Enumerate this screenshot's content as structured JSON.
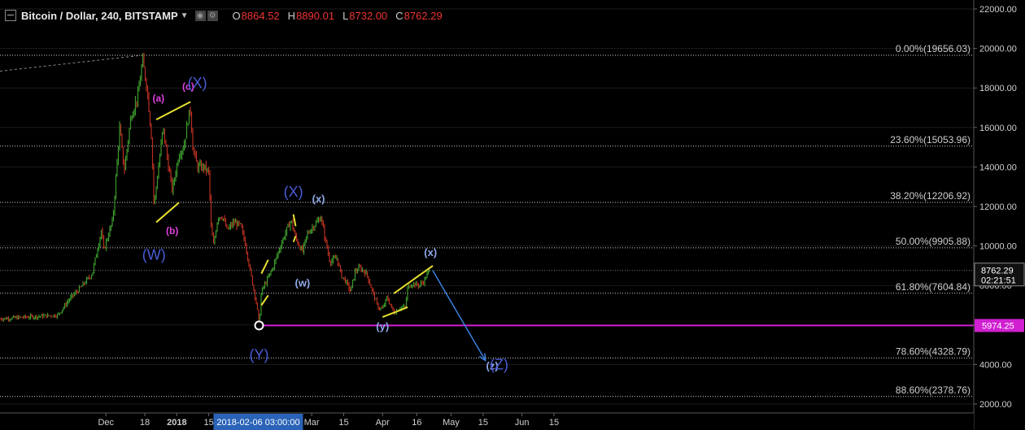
{
  "header": {
    "title": "Bitcoin / Dollar, 240, BITSTAMP",
    "ohlc": [
      {
        "key": "O",
        "value": "8864.52"
      },
      {
        "key": "H",
        "value": "8890.01"
      },
      {
        "key": "L",
        "value": "8732.00"
      },
      {
        "key": "C",
        "value": "8762.29"
      }
    ]
  },
  "colors": {
    "background": "#000000",
    "up": "#3c9a2c",
    "down": "#b83020",
    "fib": "#d0d0d0",
    "support": "#d020d0",
    "yellow_lines": "#e8e030",
    "label_magenta": "#e040e0",
    "label_blue": "#4a5cd8",
    "label_light": "#8fa8e8",
    "arrow": "#3a80e0"
  },
  "chart_data": {
    "type": "candlestick",
    "title": "Bitcoin / Dollar, 240, BITSTAMP",
    "ylim": [
      1400,
      22600
    ],
    "price_axis_ticks": [
      "22000.00",
      "20000.00",
      "18000.00",
      "16000.00",
      "14000.00",
      "12000.00",
      "10000.00",
      "8000.00",
      "6000.00",
      "4000.00",
      "2000.00"
    ],
    "price_axis_values": [
      22000,
      20000,
      18000,
      16000,
      14000,
      12000,
      10000,
      8000,
      6000,
      4000,
      2000
    ],
    "time_axis_ticks": [
      "Dec",
      "18",
      "2018",
      "15",
      "Mar",
      "15",
      "Apr",
      "16",
      "May",
      "15",
      "Jun",
      "15"
    ],
    "cursor_time_label": "2018-02-06 03:00:00",
    "last_price_label": "8762.29",
    "countdown_label": "02:21:51",
    "support_level": 5974.25,
    "support_label": "5974.25",
    "fib_levels": [
      {
        "label": "0.00%(19656.03)",
        "price": 19656.03
      },
      {
        "label": "23.60%(15053.96)",
        "price": 15053.96
      },
      {
        "label": "38.20%(12206.92)",
        "price": 12206.92
      },
      {
        "label": "50.00%(9905.88)",
        "price": 9905.88
      },
      {
        "label": "61.80%(7604.84)",
        "price": 7604.84
      },
      {
        "label": "78.60%(4328.79)",
        "price": 4328.79
      },
      {
        "label": "88.60%(2378.76)",
        "price": 2378.76
      }
    ],
    "series_path": [
      {
        "t": "2017-11-10",
        "p": 6500
      },
      {
        "t": "2017-11-15",
        "p": 7300
      },
      {
        "t": "2017-11-20",
        "p": 7900
      },
      {
        "t": "2017-11-25",
        "p": 8600
      },
      {
        "t": "2017-11-29",
        "p": 10800
      },
      {
        "t": "2017-11-30",
        "p": 9800
      },
      {
        "t": "2017-12-04",
        "p": 11300
      },
      {
        "t": "2017-12-07",
        "p": 16000
      },
      {
        "t": "2017-12-09",
        "p": 13800
      },
      {
        "t": "2017-12-12",
        "p": 16600
      },
      {
        "t": "2017-12-15",
        "p": 17600
      },
      {
        "t": "2017-12-17",
        "p": 19400
      },
      {
        "t": "2017-12-19",
        "p": 18000
      },
      {
        "t": "2017-12-21",
        "p": 15400
      },
      {
        "t": "2017-12-22",
        "p": 12000
      },
      {
        "t": "2017-12-24",
        "p": 14000
      },
      {
        "t": "2017-12-26",
        "p": 16000
      },
      {
        "t": "2017-12-28",
        "p": 14300
      },
      {
        "t": "2017-12-30",
        "p": 12800
      },
      {
        "t": "2018-01-02",
        "p": 14700
      },
      {
        "t": "2018-01-04",
        "p": 15000
      },
      {
        "t": "2018-01-06",
        "p": 16500
      },
      {
        "t": "2018-01-07",
        "p": 16900
      },
      {
        "t": "2018-01-08",
        "p": 15000
      },
      {
        "t": "2018-01-10",
        "p": 14000
      },
      {
        "t": "2018-01-13",
        "p": 14000
      },
      {
        "t": "2018-01-15",
        "p": 13700
      },
      {
        "t": "2018-01-16",
        "p": 11000
      },
      {
        "t": "2018-01-17",
        "p": 10000
      },
      {
        "t": "2018-01-19",
        "p": 11500
      },
      {
        "t": "2018-01-21",
        "p": 11500
      },
      {
        "t": "2018-01-23",
        "p": 10800
      },
      {
        "t": "2018-01-26",
        "p": 11200
      },
      {
        "t": "2018-01-29",
        "p": 11000
      },
      {
        "t": "2018-01-31",
        "p": 10100
      },
      {
        "t": "2018-02-02",
        "p": 8800
      },
      {
        "t": "2018-02-05",
        "p": 7000
      },
      {
        "t": "2018-02-06",
        "p": 6000
      },
      {
        "t": "2018-02-07",
        "p": 7700
      },
      {
        "t": "2018-02-10",
        "p": 8400
      },
      {
        "t": "2018-02-12",
        "p": 8900
      },
      {
        "t": "2018-02-15",
        "p": 9900
      },
      {
        "t": "2018-02-18",
        "p": 10800
      },
      {
        "t": "2018-02-20",
        "p": 11300
      },
      {
        "t": "2018-02-22",
        "p": 10400
      },
      {
        "t": "2018-02-25",
        "p": 9700
      },
      {
        "t": "2018-02-27",
        "p": 10600
      },
      {
        "t": "2018-03-01",
        "p": 10900
      },
      {
        "t": "2018-03-04",
        "p": 11300
      },
      {
        "t": "2018-03-05",
        "p": 11500
      },
      {
        "t": "2018-03-07",
        "p": 10300
      },
      {
        "t": "2018-03-09",
        "p": 9200
      },
      {
        "t": "2018-03-12",
        "p": 9400
      },
      {
        "t": "2018-03-14",
        "p": 8500
      },
      {
        "t": "2018-03-16",
        "p": 8200
      },
      {
        "t": "2018-03-18",
        "p": 7700
      },
      {
        "t": "2018-03-20",
        "p": 8700
      },
      {
        "t": "2018-03-22",
        "p": 8900
      },
      {
        "t": "2018-03-25",
        "p": 8600
      },
      {
        "t": "2018-03-27",
        "p": 7900
      },
      {
        "t": "2018-03-30",
        "p": 6900
      },
      {
        "t": "2018-04-01",
        "p": 6800
      },
      {
        "t": "2018-04-03",
        "p": 7400
      },
      {
        "t": "2018-04-06",
        "p": 6600
      },
      {
        "t": "2018-04-09",
        "p": 6900
      },
      {
        "t": "2018-04-11",
        "p": 6900
      },
      {
        "t": "2018-04-12",
        "p": 7900
      },
      {
        "t": "2018-04-14",
        "p": 8100
      },
      {
        "t": "2018-04-17",
        "p": 8000
      },
      {
        "t": "2018-04-19",
        "p": 8200
      },
      {
        "t": "2018-04-21",
        "p": 8700
      },
      {
        "t": "2018-04-22",
        "p": 8762
      }
    ],
    "wave_labels": [
      "(W)",
      "(X)",
      "(Y)",
      "(Z)",
      "(a)",
      "(b)",
      "(c)",
      "(w)",
      "(x)",
      "(y)",
      "(z)"
    ],
    "annotations": [
      {
        "text": "(a)",
        "t": "2017-12-24",
        "p": 17300,
        "color": "label_magenta",
        "size": 12
      },
      {
        "text": "(b)",
        "t": "2017-12-30",
        "p": 10600,
        "color": "label_magenta",
        "size": 12
      },
      {
        "text": "(c)",
        "t": "2018-01-06",
        "p": 17900,
        "color": "label_magenta",
        "size": 12
      },
      {
        "text": "(X)",
        "t": "2018-01-10",
        "p": 18000,
        "color": "label_blue",
        "size": 18
      },
      {
        "text": "(W)",
        "t": "2017-12-22",
        "p": 9300,
        "color": "label_blue",
        "size": 18
      },
      {
        "text": "(X)",
        "t": "2018-02-21",
        "p": 12500,
        "color": "label_blue",
        "size": 18
      },
      {
        "text": "(x)",
        "t": "2018-03-04",
        "p": 12200,
        "color": "label_light",
        "size": 13
      },
      {
        "text": "(w)",
        "t": "2018-02-25",
        "p": 7950,
        "color": "label_light",
        "size": 13
      },
      {
        "text": "(Y)",
        "t": "2018-02-06",
        "p": 4250,
        "color": "label_blue",
        "size": 18
      },
      {
        "text": "(y)",
        "t": "2018-04-01",
        "p": 5750,
        "color": "label_light",
        "size": 13
      },
      {
        "text": "(x)",
        "t": "2018-04-22",
        "p": 9500,
        "color": "label_light",
        "size": 13
      },
      {
        "text": "(z)",
        "t": "2018-05-19",
        "p": 3750,
        "color": "label_light",
        "size": 13
      },
      {
        "text": "(Z)",
        "t": "2018-05-22",
        "p": 3750,
        "color": "label_blue",
        "size": 18
      }
    ],
    "yellow_lines": [
      {
        "t1": "2017-12-23",
        "p1": 16400,
        "t2": "2018-01-07",
        "p2": 17300
      },
      {
        "t1": "2017-12-23",
        "p1": 11200,
        "t2": "2018-01-02",
        "p2": 12200
      },
      {
        "t1": "2018-02-07",
        "p1": 8600,
        "t2": "2018-02-10",
        "p2": 9300
      },
      {
        "t1": "2018-02-07",
        "p1": 7000,
        "t2": "2018-02-10",
        "p2": 7500
      },
      {
        "t1": "2018-02-21",
        "p1": 11600,
        "t2": "2018-02-22",
        "p2": 11000
      },
      {
        "t1": "2018-02-21",
        "p1": 10200,
        "t2": "2018-02-22",
        "p2": 10500
      },
      {
        "t1": "2018-04-06",
        "p1": 7600,
        "t2": "2018-04-23",
        "p2": 9000
      },
      {
        "t1": "2018-04-01",
        "p1": 6400,
        "t2": "2018-04-12",
        "p2": 6900
      }
    ],
    "projection_arrow": {
      "t1": "2018-04-23",
      "p1": 8750,
      "t2": "2018-05-16",
      "p2": 4200
    },
    "support_marker": {
      "t": "2018-02-06",
      "p": 5974.25
    }
  }
}
